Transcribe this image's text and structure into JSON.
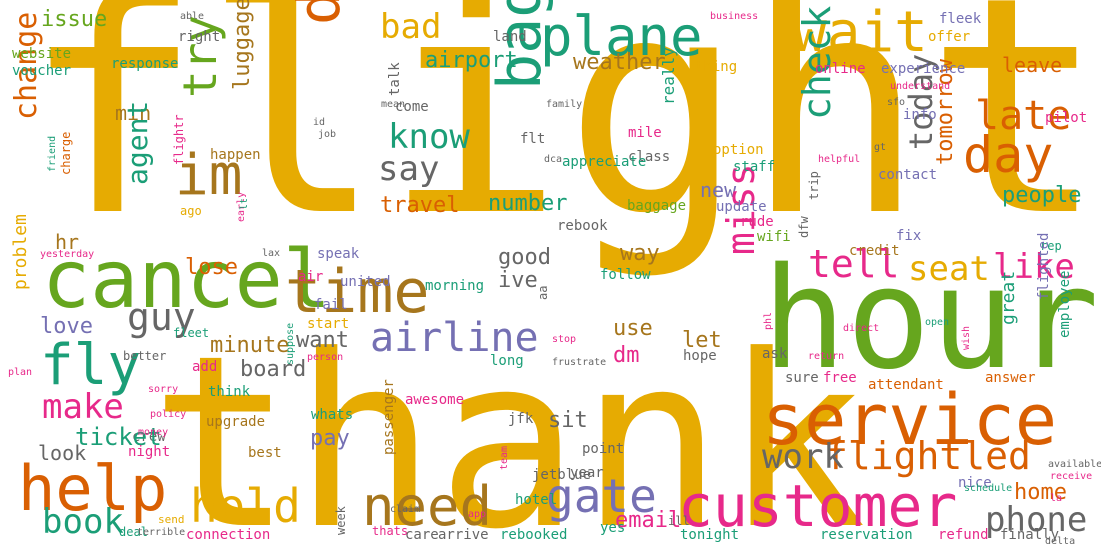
{
  "palette": {
    "gold": "#e6ab02",
    "orange": "#d95f02",
    "green": "#66a61e",
    "teal": "#1b9e77",
    "purple": "#7570b3",
    "pink": "#e7298a",
    "brown": "#a6761d",
    "gray": "#666666"
  },
  "words": [
    {
      "text": "flight",
      "color": "gold"
    },
    {
      "text": "thank",
      "color": "gold"
    },
    {
      "text": "hour",
      "color": "green"
    },
    {
      "text": "cancel",
      "color": "green"
    },
    {
      "text": "service",
      "color": "orange"
    },
    {
      "text": "customer",
      "color": "pink"
    },
    {
      "text": "time",
      "color": "brown"
    },
    {
      "text": "help",
      "color": "orange"
    },
    {
      "text": "fly",
      "color": "teal"
    },
    {
      "text": "wait",
      "color": "gold"
    },
    {
      "text": "plane",
      "color": "teal"
    },
    {
      "text": "im",
      "color": "brown"
    },
    {
      "text": "delay",
      "color": "orange"
    },
    {
      "text": "bag",
      "color": "teal"
    },
    {
      "text": "try",
      "color": "green"
    },
    {
      "text": "airline",
      "color": "purple"
    },
    {
      "text": "need",
      "color": "brown"
    },
    {
      "text": "hold",
      "color": "gold"
    },
    {
      "text": "gate",
      "color": "purple"
    },
    {
      "text": "day",
      "color": "orange"
    },
    {
      "text": "flightled",
      "color": "orange"
    },
    {
      "text": "check",
      "color": "teal"
    },
    {
      "text": "late",
      "color": "orange"
    },
    {
      "text": "tell",
      "color": "pink"
    },
    {
      "text": "like",
      "color": "pink"
    },
    {
      "text": "seat",
      "color": "gold"
    },
    {
      "text": "guy",
      "color": "gray"
    },
    {
      "text": "know",
      "color": "teal"
    },
    {
      "text": "say",
      "color": "gray"
    },
    {
      "text": "miss",
      "color": "pink"
    },
    {
      "text": "work",
      "color": "gray"
    },
    {
      "text": "phone",
      "color": "gray"
    },
    {
      "text": "make",
      "color": "pink"
    },
    {
      "text": "book",
      "color": "teal"
    },
    {
      "text": "bad",
      "color": "gold"
    },
    {
      "text": "today",
      "color": "gray"
    },
    {
      "text": "change",
      "color": "orange"
    },
    {
      "text": "agent",
      "color": "teal"
    },
    {
      "text": "airport",
      "color": "teal"
    },
    {
      "text": "weather",
      "color": "brown"
    },
    {
      "text": "leave",
      "color": "orange"
    },
    {
      "text": "issue",
      "color": "green"
    },
    {
      "text": "luggage",
      "color": "brown"
    },
    {
      "text": "ticket",
      "color": "teal"
    },
    {
      "text": "people",
      "color": "teal"
    },
    {
      "text": "travel",
      "color": "orange"
    },
    {
      "text": "number",
      "color": "teal"
    },
    {
      "text": "tomorrow",
      "color": "orange"
    },
    {
      "text": "email",
      "color": "pink"
    },
    {
      "text": "home",
      "color": "orange"
    },
    {
      "text": "minute",
      "color": "brown"
    },
    {
      "text": "board",
      "color": "gray"
    },
    {
      "text": "love",
      "color": "purple"
    },
    {
      "text": "lose",
      "color": "orange"
    },
    {
      "text": "problem",
      "color": "gold"
    },
    {
      "text": "good",
      "color": "gray"
    },
    {
      "text": "ive",
      "color": "gray"
    },
    {
      "text": "way",
      "color": "brown"
    },
    {
      "text": "want",
      "color": "gray"
    },
    {
      "text": "let",
      "color": "brown"
    },
    {
      "text": "use",
      "color": "brown"
    },
    {
      "text": "dm",
      "color": "pink"
    },
    {
      "text": "pay",
      "color": "purple"
    },
    {
      "text": "sit",
      "color": "gray"
    },
    {
      "text": "look",
      "color": "gray"
    },
    {
      "text": "great",
      "color": "teal"
    },
    {
      "text": "new",
      "color": "purple"
    },
    {
      "text": "min",
      "color": "brown"
    },
    {
      "text": "hr",
      "color": "brown"
    },
    {
      "text": "really",
      "color": "teal"
    },
    {
      "text": "crew",
      "color": "gray"
    },
    {
      "text": "upgrade",
      "color": "brown"
    },
    {
      "text": "think",
      "color": "teal"
    },
    {
      "text": "rebooked",
      "color": "teal"
    },
    {
      "text": "connection",
      "color": "pink"
    },
    {
      "text": "reservation",
      "color": "teal"
    },
    {
      "text": "refund",
      "color": "pink"
    },
    {
      "text": "finally",
      "color": "gray"
    },
    {
      "text": "tonight",
      "color": "teal"
    },
    {
      "text": "arrive",
      "color": "gray"
    },
    {
      "text": "care",
      "color": "gray"
    },
    {
      "text": "yes",
      "color": "teal"
    },
    {
      "text": "ask",
      "color": "gray"
    },
    {
      "text": "hope",
      "color": "gray"
    },
    {
      "text": "sure",
      "color": "gray"
    },
    {
      "text": "free",
      "color": "pink"
    },
    {
      "text": "attendant",
      "color": "orange"
    },
    {
      "text": "answer",
      "color": "orange"
    },
    {
      "text": "nice",
      "color": "purple"
    },
    {
      "text": "hotel",
      "color": "teal"
    },
    {
      "text": "jetblue",
      "color": "gray"
    },
    {
      "text": "point",
      "color": "gray"
    },
    {
      "text": "year",
      "color": "gray"
    },
    {
      "text": "jfk",
      "color": "gray"
    },
    {
      "text": "awesome",
      "color": "pink"
    },
    {
      "text": "passenger",
      "color": "brown"
    },
    {
      "text": "whats",
      "color": "teal"
    },
    {
      "text": "best",
      "color": "brown"
    },
    {
      "text": "night",
      "color": "pink"
    },
    {
      "text": "website",
      "color": "green"
    },
    {
      "text": "voucher",
      "color": "teal"
    },
    {
      "text": "right",
      "color": "gray"
    },
    {
      "text": "land",
      "color": "gray"
    },
    {
      "text": "response",
      "color": "teal"
    },
    {
      "text": "online",
      "color": "pink"
    },
    {
      "text": "experience",
      "color": "purple"
    },
    {
      "text": "offer",
      "color": "gold"
    },
    {
      "text": "fleek",
      "color": "purple"
    },
    {
      "text": "info",
      "color": "purple"
    },
    {
      "text": "pilot",
      "color": "pink"
    },
    {
      "text": "contact",
      "color": "purple"
    },
    {
      "text": "staff",
      "color": "teal"
    },
    {
      "text": "credit",
      "color": "brown"
    },
    {
      "text": "class",
      "color": "gray"
    },
    {
      "text": "option",
      "color": "gold"
    },
    {
      "text": "mile",
      "color": "pink"
    },
    {
      "text": "baggage",
      "color": "green"
    },
    {
      "text": "wifi",
      "color": "green"
    },
    {
      "text": "rebook",
      "color": "gray"
    },
    {
      "text": "update",
      "color": "purple"
    },
    {
      "text": "rude",
      "color": "pink"
    },
    {
      "text": "speak",
      "color": "purple"
    },
    {
      "text": "united",
      "color": "purple"
    },
    {
      "text": "morning",
      "color": "teal"
    },
    {
      "text": "follow",
      "color": "teal"
    },
    {
      "text": "fail",
      "color": "purple"
    },
    {
      "text": "start",
      "color": "gold"
    },
    {
      "text": "fix",
      "color": "purple"
    },
    {
      "text": "happen",
      "color": "brown"
    },
    {
      "text": "flighted",
      "color": "purple"
    },
    {
      "text": "employee",
      "color": "teal"
    },
    {
      "text": "thing",
      "color": "gold"
    },
    {
      "text": "come",
      "color": "gray"
    },
    {
      "text": "appreciate",
      "color": "teal"
    },
    {
      "text": "flt",
      "color": "gray"
    },
    {
      "text": "talk",
      "color": "gray"
    },
    {
      "text": "long",
      "color": "teal"
    },
    {
      "text": "add",
      "color": "pink"
    },
    {
      "text": "better",
      "color": "gray"
    },
    {
      "text": "fleet",
      "color": "teal"
    },
    {
      "text": "air",
      "color": "pink"
    },
    {
      "text": "rep",
      "color": "teal"
    },
    {
      "text": "ago",
      "color": "gold"
    },
    {
      "text": "flightr",
      "color": "pink"
    },
    {
      "text": "charge",
      "color": "orange"
    },
    {
      "text": "thats",
      "color": "pink"
    },
    {
      "text": "week",
      "color": "gray"
    },
    {
      "text": "send",
      "color": "gold"
    },
    {
      "text": "deal",
      "color": "teal"
    },
    {
      "text": "ill",
      "color": "gray"
    },
    {
      "text": "aa",
      "color": "gray"
    },
    {
      "text": "dfw",
      "color": "gray"
    },
    {
      "text": "trip",
      "color": "gray"
    },
    {
      "text": "able",
      "color": "gray"
    },
    {
      "text": "business",
      "color": "pink"
    },
    {
      "text": "family",
      "color": "gray"
    },
    {
      "text": "helpful",
      "color": "pink"
    },
    {
      "text": "gt",
      "color": "gray"
    },
    {
      "text": "sfo",
      "color": "gray"
    },
    {
      "text": "policy",
      "color": "pink"
    },
    {
      "text": "plan",
      "color": "pink"
    },
    {
      "text": "sorry",
      "color": "pink"
    },
    {
      "text": "person",
      "color": "pink"
    },
    {
      "text": "yesterday",
      "color": "pink"
    },
    {
      "text": "friend",
      "color": "teal"
    },
    {
      "text": "money",
      "color": "pink"
    },
    {
      "text": "suppose",
      "color": "teal"
    },
    {
      "text": "frustrate",
      "color": "gray"
    },
    {
      "text": "stop",
      "color": "pink"
    },
    {
      "text": "open",
      "color": "teal"
    },
    {
      "text": "direct",
      "color": "pink"
    },
    {
      "text": "phl",
      "color": "pink"
    },
    {
      "text": "return",
      "color": "pink"
    },
    {
      "text": "wish",
      "color": "pink"
    },
    {
      "text": "available",
      "color": "gray"
    },
    {
      "text": "la",
      "color": "pink"
    },
    {
      "text": "receive",
      "color": "pink"
    },
    {
      "text": "delta",
      "color": "gray"
    },
    {
      "text": "schedule",
      "color": "teal"
    },
    {
      "text": "claim",
      "color": "gray"
    },
    {
      "text": "app",
      "color": "pink"
    },
    {
      "text": "team",
      "color": "pink"
    },
    {
      "text": "terrible",
      "color": "gray"
    },
    {
      "text": "id",
      "color": "gray"
    },
    {
      "text": "mean",
      "color": "gray"
    },
    {
      "text": "job",
      "color": "gray"
    },
    {
      "text": "dca",
      "color": "gray"
    },
    {
      "text": "early",
      "color": "pink"
    },
    {
      "text": "understand",
      "color": "pink"
    },
    {
      "text": "lax",
      "color": "gray"
    },
    {
      "text": "lt",
      "color": "teal"
    },
    {
      "text": "gonna",
      "color": "teal"
    }
  ]
}
